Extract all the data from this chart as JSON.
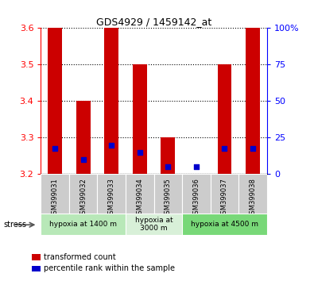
{
  "title": "GDS4929 / 1459142_at",
  "samples": [
    "GSM399031",
    "GSM399032",
    "GSM399033",
    "GSM399034",
    "GSM399035",
    "GSM399036",
    "GSM399037",
    "GSM399038"
  ],
  "red_values": [
    3.6,
    3.4,
    3.6,
    3.5,
    3.3,
    3.2,
    3.5,
    3.6
  ],
  "blue_values": [
    3.27,
    3.24,
    3.28,
    3.26,
    3.22,
    3.22,
    3.27,
    3.27
  ],
  "y_min": 3.2,
  "y_max": 3.6,
  "y_ticks": [
    3.2,
    3.3,
    3.4,
    3.5,
    3.6
  ],
  "y2_ticks": [
    0,
    25,
    50,
    75,
    100
  ],
  "y2_labels": [
    "0",
    "25",
    "50",
    "75",
    "100%"
  ],
  "groups": [
    {
      "label": "hypoxia at 1400 m",
      "start": 0,
      "end": 3,
      "color": "#b8e8b8"
    },
    {
      "label": "hypoxia at\n3000 m",
      "start": 3,
      "end": 5,
      "color": "#d8f0d8"
    },
    {
      "label": "hypoxia at 4500 m",
      "start": 5,
      "end": 8,
      "color": "#78d878"
    }
  ],
  "stress_label": "stress",
  "legend_red": "transformed count",
  "legend_blue": "percentile rank within the sample",
  "bar_color": "#cc0000",
  "dot_color": "#0000cc",
  "bar_width": 0.5,
  "dot_size": 25,
  "sample_box_color": "#cccccc",
  "fig_bg": "#ffffff"
}
